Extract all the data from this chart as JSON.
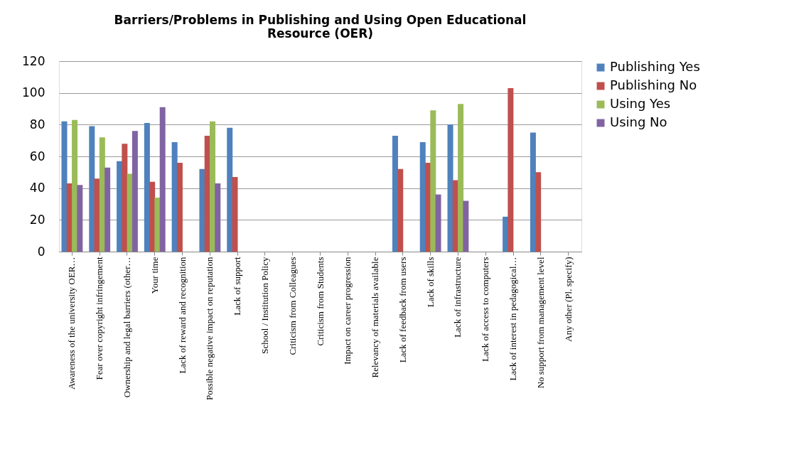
{
  "chart_data": {
    "type": "bar",
    "title": "Barriers/Problems in Publishing and Using Open Educational Resource (OER)",
    "categories": [
      "Awareness of the university OER…",
      "Fear over copyright infringement",
      "Ownership and legal barriers (other…",
      "Your time",
      "Lack of reward and recognition",
      "Possible negative impact on reputation",
      "Lack of support",
      "School / Institution Policy",
      "Criticism from Colleagues",
      "Criticism from Students",
      "Impact on career progression",
      "Relevancy of materials available",
      "Lack of feedback from users",
      "Lack of skills",
      "Lack of infrastructure",
      "Lack of access to computers",
      "Lack of interest in pedagogical…",
      "No support from management level",
      "Any other (Pl. specify)"
    ],
    "series": [
      {
        "name": "Publishing Yes",
        "color": "#4f81bd",
        "values": [
          82,
          79,
          57,
          81,
          69,
          52,
          78,
          null,
          null,
          null,
          null,
          null,
          73,
          69,
          80,
          null,
          22,
          75,
          null
        ]
      },
      {
        "name": "Publishing No",
        "color": "#c0504d",
        "values": [
          43,
          46,
          68,
          44,
          56,
          73,
          47,
          null,
          null,
          null,
          null,
          null,
          52,
          56,
          45,
          null,
          103,
          50,
          null
        ]
      },
      {
        "name": "Using Yes",
        "color": "#9bbb59",
        "values": [
          83,
          72,
          49,
          34,
          null,
          82,
          null,
          null,
          null,
          null,
          null,
          null,
          null,
          89,
          93,
          null,
          null,
          null,
          null
        ]
      },
      {
        "name": "Using No",
        "color": "#8064a2",
        "values": [
          42,
          53,
          76,
          91,
          null,
          43,
          null,
          null,
          null,
          null,
          null,
          null,
          null,
          36,
          32,
          null,
          null,
          null,
          null
        ]
      }
    ],
    "ylim": [
      0,
      120
    ],
    "yticks": [
      0,
      20,
      40,
      60,
      80,
      100,
      120
    ],
    "grid": "y",
    "legend": "right"
  }
}
